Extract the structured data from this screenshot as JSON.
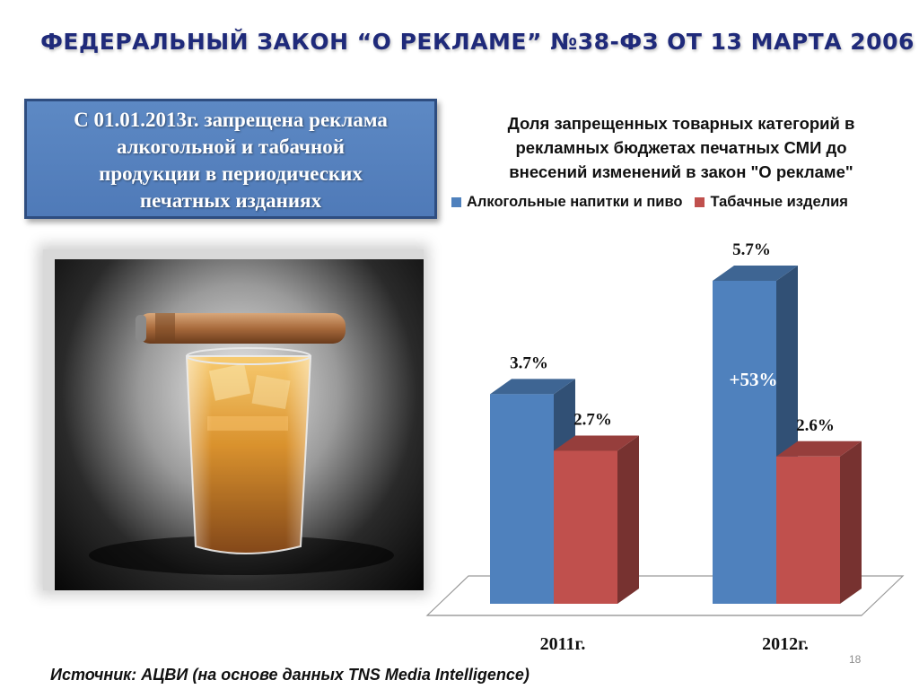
{
  "slide": {
    "title": "ФЕДЕРАЛЬНЫЙ ЗАКОН “О РЕКЛАМЕ” №38-ФЗ ОТ 13 МАРТА 2006",
    "info_box": {
      "line1": "С 01.01.2013г. запрещена реклама",
      "line2": "алкогольной и табачной",
      "line3": "продукции в периодических",
      "line4": "печатных изданиях"
    },
    "photo_icon": "cigar-on-whiskey-glass-photo",
    "source": "Источник: АЦВИ (на основе данных TNS Media Intelligence)",
    "page_number": "18"
  },
  "chart_data": {
    "type": "bar",
    "title_lines": [
      "Доля запрещенных товарных категорий в",
      "рекламных бюджетах печатных СМИ до",
      "внесений изменений в закон \"О рекламе\""
    ],
    "categories": [
      "2011г.",
      "2012г."
    ],
    "series": [
      {
        "name": "Алкогольные напитки и пиво",
        "values": [
          3.7,
          5.7
        ],
        "labels": [
          "3.7%",
          "5.7%"
        ],
        "color": "#4f81bd"
      },
      {
        "name": "Табачные изделия",
        "values": [
          2.7,
          2.6
        ],
        "labels": [
          "2.7%",
          "2.6%"
        ],
        "color": "#c0504d"
      }
    ],
    "annotation": "+53%",
    "unit": "%",
    "legend_position": "top",
    "grid": false,
    "ylim": [
      0,
      5.7
    ]
  }
}
